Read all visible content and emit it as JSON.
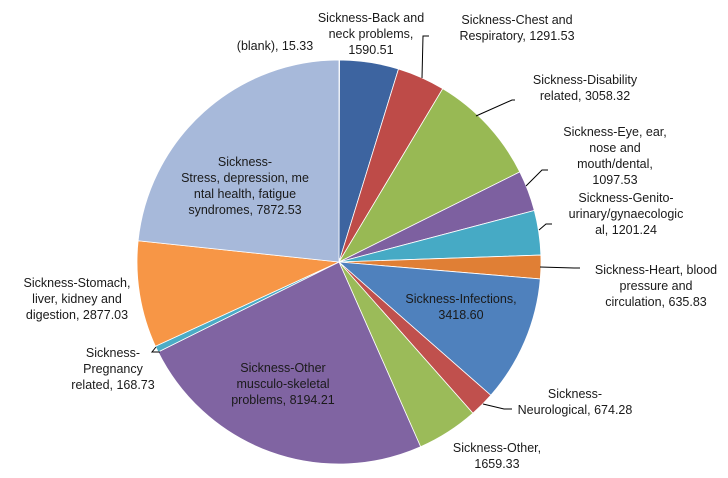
{
  "chart_data": {
    "type": "pie",
    "title": "",
    "legend": "none",
    "slices": [
      {
        "label_lines": [
          "(blank), 15.33"
        ],
        "category": "(blank)",
        "value": 15.33,
        "color": "#4a7ebb"
      },
      {
        "label_lines": [
          "Sickness-Back and",
          "neck problems,",
          "1590.51"
        ],
        "category": "Sickness-Back and neck problems",
        "value": 1590.51,
        "color": "#3d64a0"
      },
      {
        "label_lines": [
          "Sickness-Chest and",
          "Respiratory, 1291.53"
        ],
        "category": "Sickness-Chest and Respiratory",
        "value": 1291.53,
        "color": "#be4b48"
      },
      {
        "label_lines": [
          "Sickness-Disability",
          "related, 3058.32"
        ],
        "category": "Sickness-Disability related",
        "value": 3058.32,
        "color": "#98b954"
      },
      {
        "label_lines": [
          "Sickness-Eye, ear,",
          "nose and",
          "mouth/dental,",
          "1097.53"
        ],
        "category": "Sickness-Eye, ear, nose and mouth/dental",
        "value": 1097.53,
        "color": "#7d60a0"
      },
      {
        "label_lines": [
          "Sickness-Genito-",
          "urinary/gynaecologic",
          "al, 1201.24"
        ],
        "category": "Sickness-Genito-urinary/gynaecological",
        "value": 1201.24,
        "color": "#46aac5"
      },
      {
        "label_lines": [
          "Sickness-Heart, blood",
          "pressure and",
          "circulation, 635.83"
        ],
        "category": "Sickness-Heart, blood pressure and circulation",
        "value": 635.83,
        "color": "#e07f35"
      },
      {
        "label_lines": [
          "Sickness-Infections,",
          "3418.60"
        ],
        "category": "Sickness-Infections",
        "value": 3418.6,
        "color": "#4f81bd"
      },
      {
        "label_lines": [
          "Sickness-",
          "Neurological, 674.28"
        ],
        "category": "Sickness-Neurological",
        "value": 674.28,
        "color": "#c0504d"
      },
      {
        "label_lines": [
          "Sickness-Other,",
          "1659.33"
        ],
        "category": "Sickness-Other",
        "value": 1659.33,
        "color": "#9bbb59"
      },
      {
        "label_lines": [
          "Sickness-Other",
          "musculo-skeletal",
          "problems, 8194.21"
        ],
        "category": "Sickness-Other musculo-skeletal problems",
        "value": 8194.21,
        "color": "#8064a2"
      },
      {
        "label_lines": [
          "Sickness-",
          "Pregnancy",
          "related, 168.73"
        ],
        "category": "Sickness-Pregnancy related",
        "value": 168.73,
        "color": "#4bacc6"
      },
      {
        "label_lines": [
          "Sickness-Stomach,",
          "liver, kidney and",
          "digestion, 2877.03"
        ],
        "category": "Sickness-Stomach, liver, kidney and digestion",
        "value": 2877.03,
        "color": "#f79646"
      },
      {
        "label_lines": [
          "Sickness-",
          "Stress, depression, me",
          "ntal health, fatigue",
          "syndromes, 7872.53"
        ],
        "category": "Sickness-Stress, depression, mental health, fatigue syndromes",
        "value": 7872.53,
        "color": "#a7b9da"
      }
    ]
  }
}
